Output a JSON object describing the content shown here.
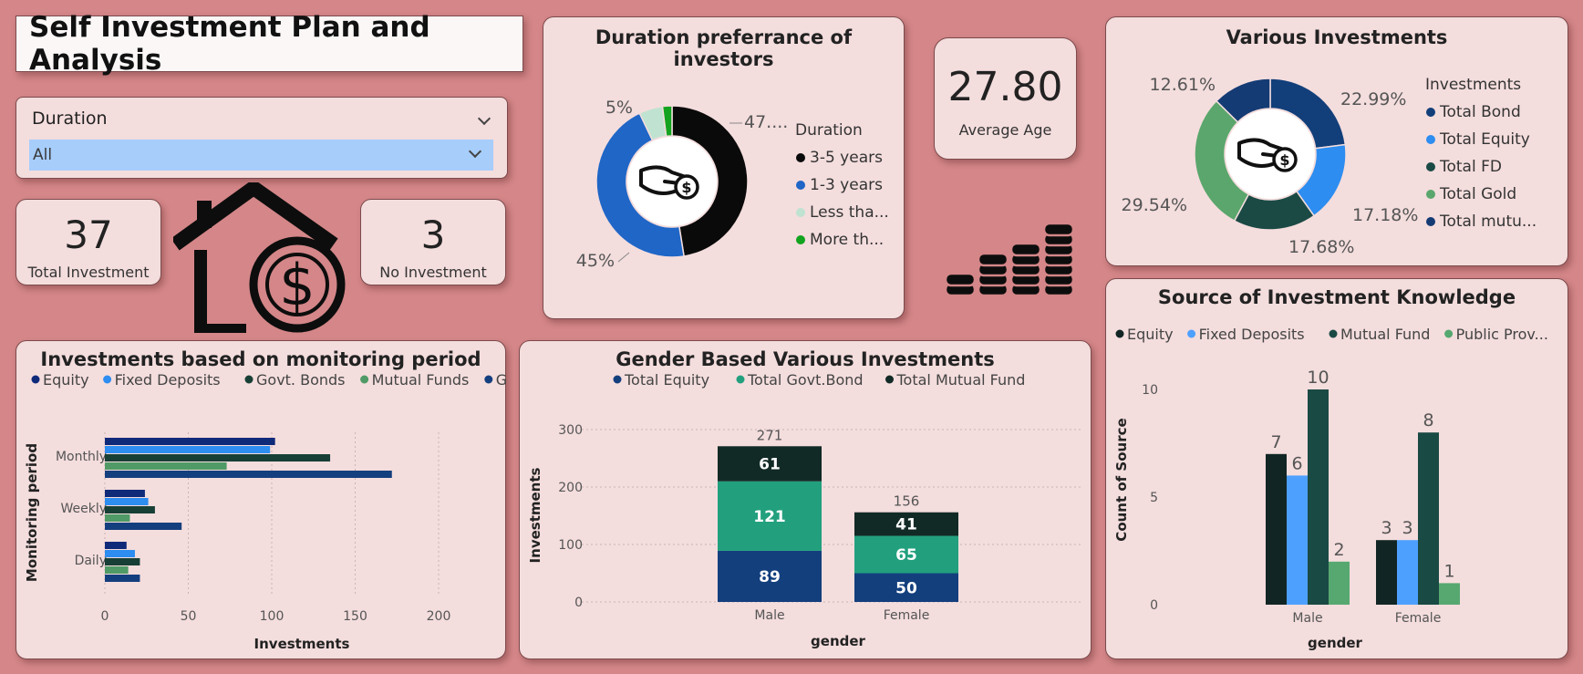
{
  "header": {
    "title": "Self Investment Plan and Analysis"
  },
  "slicer": {
    "label": "Duration",
    "value": "All"
  },
  "kpis": {
    "total_investment": {
      "value": "37",
      "label": "Total Investment"
    },
    "no_investment": {
      "value": "3",
      "label": "No Investment"
    },
    "average_age": {
      "value": "27.80",
      "label": "Average Age"
    }
  },
  "icons": [
    "house-dollar-icon",
    "coin-stack-icon",
    "hand-dollar-icon"
  ],
  "chart_data": [
    {
      "id": "duration",
      "type": "pie",
      "title": "Duration preferrance of investors",
      "legend_title": "Duration",
      "legend_position": "right",
      "labels": [
        "3-5 years",
        "1-3 years",
        "Less tha...",
        "More th..."
      ],
      "values": [
        47,
        45,
        5,
        2
      ],
      "data_labels": [
        "47....",
        "45%",
        "5%",
        ""
      ],
      "colors": [
        "#0a0a0a",
        "#1f66c6",
        "#bfe3d0",
        "#13a31f"
      ]
    },
    {
      "id": "various",
      "type": "pie",
      "title": "Various Investments",
      "legend_title": "Investments",
      "legend_position": "right",
      "labels": [
        "Total Bond",
        "Total Equity",
        "Total FD",
        "Total Gold",
        "Total mutu..."
      ],
      "values": [
        22.99,
        17.18,
        17.68,
        29.54,
        12.61
      ],
      "data_labels": [
        "22.99%",
        "17.18%",
        "17.68%",
        "29.54%",
        "12.61%"
      ],
      "colors": [
        "#123f7a",
        "#2d8df0",
        "#1b4a45",
        "#5aa66c",
        "#143b74"
      ]
    },
    {
      "id": "monitoring",
      "type": "bar",
      "orientation": "horizontal",
      "title": "Investments based on monitoring period",
      "xlabel": "Investments",
      "ylabel": "Monitoring period",
      "xlim": [
        0,
        200
      ],
      "xticks": [
        "0",
        "50",
        "100",
        "150",
        "200"
      ],
      "categories": [
        "Monthly",
        "Weekly",
        "Daily"
      ],
      "legend_position": "top",
      "series": [
        {
          "name": "Equity",
          "color": "#102a7a",
          "values": [
            102,
            24,
            13
          ]
        },
        {
          "name": "Fixed Deposits",
          "color": "#2d8df0",
          "values": [
            99,
            26,
            18
          ]
        },
        {
          "name": "Govt. Bonds",
          "color": "#173f36",
          "values": [
            135,
            30,
            21
          ]
        },
        {
          "name": "Mutual Funds",
          "color": "#4f9a66",
          "values": [
            73,
            15,
            14
          ]
        },
        {
          "name": "Gold",
          "color": "#143f7e",
          "values": [
            172,
            46,
            21
          ]
        }
      ]
    },
    {
      "id": "gender",
      "type": "bar",
      "stacked": true,
      "title": "Gender Based Various Investments",
      "xlabel": "gender",
      "ylabel": "Investments",
      "ylim": [
        0,
        300
      ],
      "yticks": [
        "0",
        "100",
        "200",
        "300"
      ],
      "categories": [
        "Male",
        "Female"
      ],
      "totals": [
        "271",
        "156"
      ],
      "legend_position": "top",
      "series": [
        {
          "name": "Total Equity",
          "color": "#133f7d",
          "values": [
            89,
            50
          ]
        },
        {
          "name": "Total Govt.Bond",
          "color": "#22a07e",
          "values": [
            121,
            65
          ]
        },
        {
          "name": "Total Mutual Fund",
          "color": "#122a26",
          "values": [
            61,
            41
          ]
        }
      ]
    },
    {
      "id": "source",
      "type": "bar",
      "title": "Source of Investment Knowledge",
      "xlabel": "gender",
      "ylabel": "Count of Source",
      "ylim": [
        0,
        10
      ],
      "yticks": [
        "0",
        "5",
        "10"
      ],
      "categories": [
        "Male",
        "Female"
      ],
      "legend_position": "top",
      "series": [
        {
          "name": "Equity",
          "color": "#112624",
          "values": [
            7,
            3
          ]
        },
        {
          "name": "Fixed Deposits",
          "color": "#4ea0ff",
          "values": [
            6,
            3
          ]
        },
        {
          "name": "Mutual Fund",
          "color": "#1a4a44",
          "values": [
            10,
            8
          ]
        },
        {
          "name": "Public Prov...",
          "color": "#56a870",
          "values": [
            2,
            1
          ]
        }
      ]
    }
  ]
}
